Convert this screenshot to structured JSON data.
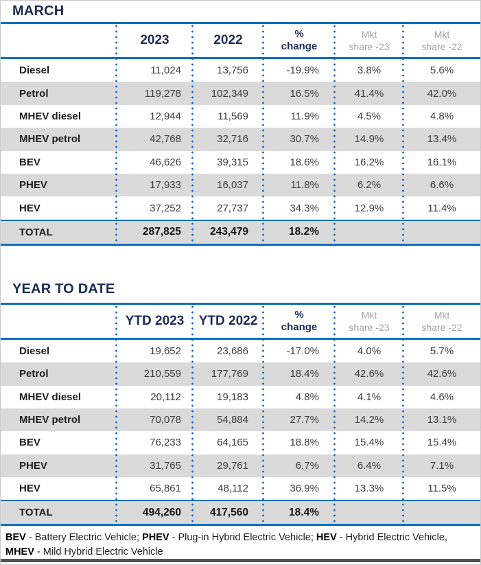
{
  "colors": {
    "navy": "#1c2b58",
    "blue": "#0d70bb",
    "dot": "#1467c7",
    "stripe": "#dadada",
    "gray_header": "#a4a4a4",
    "text": "#3d3d3d",
    "bar": "#515256"
  },
  "tables": [
    {
      "title": "MARCH",
      "columns": [
        {
          "id": "category",
          "class": "empty",
          "lines": [
            ""
          ]
        },
        {
          "id": "y2023",
          "class": "year",
          "lines": [
            "2023"
          ]
        },
        {
          "id": "y2022",
          "class": "year",
          "lines": [
            "2022"
          ]
        },
        {
          "id": "pct-change",
          "class": "change",
          "lines": [
            "%",
            "change"
          ]
        },
        {
          "id": "mkt-share-23",
          "class": "share",
          "lines": [
            "Mkt",
            "share -23"
          ]
        },
        {
          "id": "mkt-share-22",
          "class": "share",
          "lines": [
            "Mkt",
            "share -22"
          ]
        }
      ],
      "rows": [
        {
          "label": "Diesel",
          "values": [
            "11,024",
            "13,756",
            "-19.9%",
            "3.8%",
            "5.6%"
          ]
        },
        {
          "label": "Petrol",
          "values": [
            "119,278",
            "102,349",
            "16.5%",
            "41.4%",
            "42.0%"
          ]
        },
        {
          "label": "MHEV diesel",
          "values": [
            "12,944",
            "11,569",
            "11.9%",
            "4.5%",
            "4.8%"
          ]
        },
        {
          "label": "MHEV petrol",
          "values": [
            "42,768",
            "32,716",
            "30.7%",
            "14.9%",
            "13.4%"
          ]
        },
        {
          "label": "BEV",
          "values": [
            "46,626",
            "39,315",
            "18.6%",
            "16.2%",
            "16.1%"
          ]
        },
        {
          "label": "PHEV",
          "values": [
            "17,933",
            "16,037",
            "11.8%",
            "6.2%",
            "6.6%"
          ]
        },
        {
          "label": "HEV",
          "values": [
            "37,252",
            "27,737",
            "34.3%",
            "12.9%",
            "11.4%"
          ]
        }
      ],
      "total": {
        "label": "TOTAL",
        "values": [
          "287,825",
          "243,479",
          "18.2%",
          "",
          ""
        ]
      }
    },
    {
      "title": "YEAR TO DATE",
      "columns": [
        {
          "id": "category",
          "class": "empty",
          "lines": [
            ""
          ]
        },
        {
          "id": "ytd2023",
          "class": "year",
          "lines": [
            "YTD 2023"
          ]
        },
        {
          "id": "ytd2022",
          "class": "year",
          "lines": [
            "YTD 2022"
          ]
        },
        {
          "id": "pct-change",
          "class": "change",
          "lines": [
            "%",
            "change"
          ]
        },
        {
          "id": "mkt-share-23",
          "class": "share",
          "lines": [
            "Mkt",
            "share -23"
          ]
        },
        {
          "id": "mkt-share-22",
          "class": "share",
          "lines": [
            "Mkt",
            "share -22"
          ]
        }
      ],
      "rows": [
        {
          "label": "Diesel",
          "values": [
            "19,652",
            "23,686",
            "-17.0%",
            "4.0%",
            "5.7%"
          ]
        },
        {
          "label": "Petrol",
          "values": [
            "210,559",
            "177,769",
            "18.4%",
            "42.6%",
            "42.6%"
          ]
        },
        {
          "label": "MHEV diesel",
          "values": [
            "20,112",
            "19,183",
            "4.8%",
            "4.1%",
            "4.6%"
          ]
        },
        {
          "label": "MHEV petrol",
          "values": [
            "70,078",
            "54,884",
            "27.7%",
            "14.2%",
            "13.1%"
          ]
        },
        {
          "label": "BEV",
          "values": [
            "76,233",
            "64,165",
            "18.8%",
            "15.4%",
            "15.4%"
          ]
        },
        {
          "label": "PHEV",
          "values": [
            "31,765",
            "29,761",
            "6.7%",
            "6.4%",
            "7.1%"
          ]
        },
        {
          "label": "HEV",
          "values": [
            "65,861",
            "48,112",
            "36.9%",
            "13.3%",
            "11.5%"
          ]
        }
      ],
      "total": {
        "label": "TOTAL",
        "values": [
          "494,260",
          "417,560",
          "18.4%",
          "",
          ""
        ]
      }
    }
  ],
  "footnote": {
    "segments": [
      {
        "abbr": "BEV",
        "rest": " - Battery Electric Vehicle; ",
        "break_after": false
      },
      {
        "abbr": "PHEV",
        "rest": " - Plug-in Hybrid Electric Vehicle; ",
        "break_after": false
      },
      {
        "abbr": "HEV",
        "rest": " - Hybrid Electric Vehicle,",
        "break_after": true
      },
      {
        "abbr": "MHEV",
        "rest": " - Mild Hybrid Electric Vehicle",
        "break_after": false
      }
    ]
  }
}
